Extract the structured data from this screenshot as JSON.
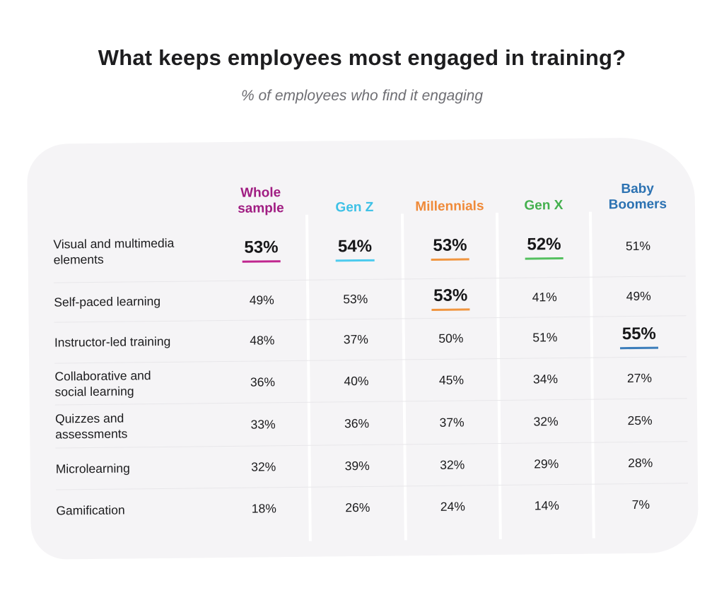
{
  "title": "What keeps employees most engaged in training?",
  "subtitle": "% of employees who find it engaging",
  "chart_data": {
    "type": "table",
    "title": "What keeps employees most engaged in training?",
    "subtitle": "% of employees who find it engaging",
    "value_unit": "%",
    "legend_position": "none",
    "columns": [
      {
        "label": "Whole sample",
        "color": "#A01D82",
        "underline_color": "#C0268F"
      },
      {
        "label": "Gen Z",
        "color": "#3EC1E6",
        "underline_color": "#4DCBEE"
      },
      {
        "label": "Millennials",
        "color": "#EF8A39",
        "underline_color": "#F0953F"
      },
      {
        "label": "Gen X",
        "color": "#44B04E",
        "underline_color": "#54C05F"
      },
      {
        "label": "Baby Boomers",
        "color": "#2C72B2",
        "underline_color": "#3D7EBB"
      }
    ],
    "rows": [
      {
        "label": "Visual and multimedia elements",
        "values": [
          "53%",
          "54%",
          "53%",
          "52%",
          "51%"
        ],
        "highlighted": [
          true,
          true,
          true,
          true,
          false
        ]
      },
      {
        "label": "Self-paced learning",
        "values": [
          "49%",
          "53%",
          "53%",
          "41%",
          "49%"
        ],
        "highlighted": [
          false,
          false,
          true,
          false,
          false
        ]
      },
      {
        "label": "Instructor-led training",
        "values": [
          "48%",
          "37%",
          "50%",
          "51%",
          "55%"
        ],
        "highlighted": [
          false,
          false,
          false,
          false,
          true
        ]
      },
      {
        "label": "Collaborative and social learning",
        "values": [
          "36%",
          "40%",
          "45%",
          "34%",
          "27%"
        ],
        "highlighted": [
          false,
          false,
          false,
          false,
          false
        ]
      },
      {
        "label": "Quizzes and assessments",
        "values": [
          "33%",
          "36%",
          "37%",
          "32%",
          "25%"
        ],
        "highlighted": [
          false,
          false,
          false,
          false,
          false
        ]
      },
      {
        "label": "Microlearning",
        "values": [
          "32%",
          "39%",
          "32%",
          "29%",
          "28%"
        ],
        "highlighted": [
          false,
          false,
          false,
          false,
          false
        ]
      },
      {
        "label": "Gamification",
        "values": [
          "18%",
          "26%",
          "24%",
          "14%",
          "7%"
        ],
        "highlighted": [
          false,
          false,
          false,
          false,
          false
        ]
      }
    ]
  },
  "colors": {
    "card_background": "#F5F4F6",
    "row_divider": "#E8E7EA",
    "column_divider": "#FFFFFF",
    "title_text": "#1D1D1F",
    "subtitle_text": "#6E6E73",
    "value_text": "#1B1B1D"
  }
}
